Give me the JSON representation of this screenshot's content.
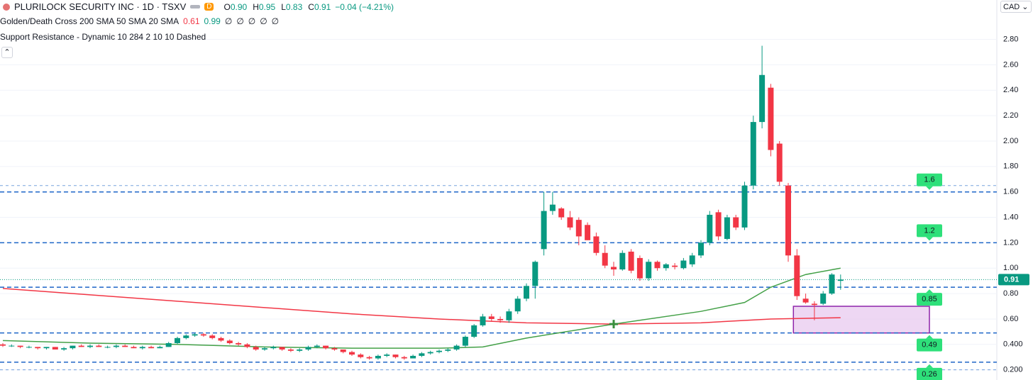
{
  "chart_data": {
    "type": "candlestick",
    "header": {
      "symbol": "PLURILOCK SECURITY INC · 1D · TSXV",
      "interval_badge": "D",
      "ohlc": [
        {
          "key": "O",
          "value": "0.90"
        },
        {
          "key": "H",
          "value": "0.95"
        },
        {
          "key": "L",
          "value": "0.83"
        },
        {
          "key": "C",
          "value": "0.91"
        }
      ],
      "change": "−0.04 (−4.21%)",
      "currency": "CAD"
    },
    "indicators": [
      {
        "name": "Golden/Death Cross 200 SMA 50 SMA 20 SMA",
        "values": [
          {
            "text": "0.61",
            "color": "#f23645"
          },
          {
            "text": "0.99",
            "color": "#089981"
          },
          {
            "text": "∅",
            "color": "#131722"
          },
          {
            "text": "∅",
            "color": "#131722"
          },
          {
            "text": "∅",
            "color": "#131722"
          },
          {
            "text": "∅",
            "color": "#131722"
          },
          {
            "text": "∅",
            "color": "#131722"
          }
        ]
      },
      {
        "name": "Support Resistance - Dynamic 10 284 2 10 10 Dashed"
      }
    ],
    "up_color": "#089981",
    "down_color": "#f23645",
    "open": [
      0.4,
      0.39,
      0.39,
      0.38,
      0.38,
      0.37,
      0.38,
      0.36,
      0.37,
      0.39,
      0.38,
      0.39,
      0.38,
      0.38,
      0.39,
      0.38,
      0.37,
      0.38,
      0.37,
      0.38,
      0.41,
      0.45,
      0.47,
      0.48,
      0.47,
      0.45,
      0.43,
      0.41,
      0.4,
      0.38,
      0.36,
      0.37,
      0.38,
      0.36,
      0.35,
      0.36,
      0.38,
      0.39,
      0.37,
      0.36,
      0.34,
      0.32,
      0.3,
      0.29,
      0.31,
      0.32,
      0.3,
      0.29,
      0.31,
      0.33,
      0.34,
      0.35,
      0.36,
      0.39,
      0.46,
      0.55,
      0.62,
      0.6,
      0.59,
      0.66,
      0.76,
      0.86,
      1.15,
      1.45,
      1.47,
      1.4,
      1.38,
      1.34,
      1.25,
      1.12,
      1.01,
      0.99,
      1.13,
      1.08,
      0.92,
      1.05,
      1.0,
      1.02,
      1.0,
      1.03,
      1.1,
      1.2,
      1.44,
      1.23,
      1.4,
      1.32,
      1.65,
      2.15,
      2.42,
      1.98,
      1.65,
      1.1,
      0.76,
      0.72,
      0.72,
      0.8,
      0.9
    ],
    "high": [
      0.41,
      0.4,
      0.39,
      0.39,
      0.38,
      0.38,
      0.38,
      0.38,
      0.39,
      0.4,
      0.4,
      0.4,
      0.39,
      0.4,
      0.4,
      0.39,
      0.39,
      0.39,
      0.39,
      0.42,
      0.46,
      0.48,
      0.49,
      0.49,
      0.48,
      0.46,
      0.44,
      0.42,
      0.41,
      0.39,
      0.38,
      0.39,
      0.38,
      0.37,
      0.37,
      0.39,
      0.4,
      0.39,
      0.38,
      0.36,
      0.35,
      0.33,
      0.31,
      0.32,
      0.33,
      0.32,
      0.31,
      0.32,
      0.34,
      0.35,
      0.36,
      0.37,
      0.4,
      0.47,
      0.56,
      0.64,
      0.64,
      0.62,
      0.68,
      0.78,
      0.88,
      1.06,
      1.6,
      1.6,
      1.48,
      1.45,
      1.4,
      1.36,
      1.28,
      1.18,
      1.05,
      1.14,
      1.15,
      1.1,
      1.07,
      1.06,
      1.04,
      1.04,
      1.08,
      1.12,
      1.22,
      1.45,
      1.46,
      1.42,
      1.42,
      1.68,
      2.2,
      2.75,
      2.45,
      2.0,
      1.67,
      1.15,
      0.8,
      0.74,
      0.82,
      0.96,
      0.95
    ],
    "low": [
      0.38,
      0.38,
      0.37,
      0.37,
      0.36,
      0.36,
      0.36,
      0.35,
      0.36,
      0.38,
      0.37,
      0.38,
      0.37,
      0.37,
      0.38,
      0.37,
      0.36,
      0.37,
      0.37,
      0.38,
      0.4,
      0.44,
      0.46,
      0.46,
      0.44,
      0.42,
      0.4,
      0.39,
      0.37,
      0.35,
      0.35,
      0.36,
      0.35,
      0.34,
      0.34,
      0.35,
      0.37,
      0.36,
      0.35,
      0.33,
      0.31,
      0.29,
      0.28,
      0.28,
      0.3,
      0.29,
      0.28,
      0.29,
      0.3,
      0.32,
      0.33,
      0.34,
      0.35,
      0.38,
      0.45,
      0.54,
      0.58,
      0.57,
      0.57,
      0.64,
      0.74,
      0.76,
      1.1,
      1.42,
      1.38,
      1.3,
      1.18,
      1.22,
      1.1,
      1.0,
      0.94,
      0.98,
      0.96,
      0.9,
      0.9,
      0.98,
      0.98,
      0.99,
      0.99,
      1.01,
      1.08,
      1.18,
      1.22,
      1.22,
      1.3,
      1.3,
      1.62,
      2.1,
      1.88,
      1.65,
      1.05,
      0.75,
      0.72,
      0.59,
      0.71,
      0.79,
      0.83
    ],
    "close": [
      0.39,
      0.39,
      0.38,
      0.38,
      0.37,
      0.38,
      0.36,
      0.37,
      0.39,
      0.38,
      0.39,
      0.38,
      0.38,
      0.39,
      0.38,
      0.37,
      0.38,
      0.37,
      0.38,
      0.41,
      0.45,
      0.47,
      0.48,
      0.47,
      0.45,
      0.43,
      0.41,
      0.4,
      0.38,
      0.36,
      0.37,
      0.38,
      0.36,
      0.35,
      0.36,
      0.38,
      0.39,
      0.37,
      0.36,
      0.34,
      0.32,
      0.3,
      0.29,
      0.31,
      0.32,
      0.3,
      0.29,
      0.31,
      0.33,
      0.34,
      0.35,
      0.36,
      0.39,
      0.46,
      0.55,
      0.62,
      0.6,
      0.59,
      0.66,
      0.76,
      0.86,
      1.05,
      1.45,
      1.5,
      1.4,
      1.32,
      1.25,
      1.22,
      1.12,
      1.02,
      0.99,
      1.12,
      0.98,
      0.92,
      1.05,
      1.0,
      1.03,
      1.01,
      1.06,
      1.1,
      1.2,
      1.42,
      1.25,
      1.4,
      1.32,
      1.65,
      2.15,
      2.52,
      1.93,
      1.68,
      1.1,
      0.78,
      0.73,
      0.71,
      0.8,
      0.95,
      0.91
    ],
    "series": [
      {
        "color": "#f23645",
        "x": [
          0,
          10,
          20,
          30,
          40,
          50,
          60,
          70,
          80,
          88,
          96
        ],
        "values": [
          0.84,
          0.79,
          0.74,
          0.69,
          0.64,
          0.6,
          0.57,
          0.56,
          0.57,
          0.6,
          0.61
        ]
      },
      {
        "color": "#43a047",
        "x": [
          0,
          10,
          20,
          30,
          40,
          50,
          55,
          60,
          70,
          80,
          85,
          88,
          92,
          96
        ],
        "values": [
          0.43,
          0.41,
          0.4,
          0.38,
          0.37,
          0.37,
          0.38,
          0.45,
          0.56,
          0.66,
          0.73,
          0.85,
          0.95,
          1.0
        ]
      }
    ],
    "cross_marker": {
      "x": 70,
      "value": 0.56,
      "color": "#388e3c"
    },
    "levels": [
      {
        "value": 1.6,
        "label": "1.6"
      },
      {
        "value": 1.2,
        "label": "1.2"
      },
      {
        "value": 0.85,
        "label": "0.85"
      },
      {
        "value": 0.49,
        "label": "0.49"
      },
      {
        "value": 0.26,
        "label": "0.26"
      }
    ],
    "extra_levels": [
      1.65,
      0.2
    ],
    "level_color": "#1e66c8",
    "tag_color": "#2ee07a",
    "zone": {
      "low": 0.49,
      "high": 0.7,
      "start": 91,
      "fill": "#e7c6ee",
      "stroke": "#8e24aa"
    },
    "last_price": {
      "value": 0.91,
      "label": "0.91"
    },
    "ylim": [
      0.12,
      3.11
    ],
    "yticks": [
      {
        "value": 0.2,
        "label": "0.200"
      },
      {
        "value": 0.4,
        "label": "0.400"
      },
      {
        "value": 0.6,
        "label": "0.60"
      },
      {
        "value": 0.8,
        "label": "0.80"
      },
      {
        "value": 1.0,
        "label": "1.00"
      },
      {
        "value": 1.2,
        "label": "1.20"
      },
      {
        "value": 1.4,
        "label": "1.40"
      },
      {
        "value": 1.6,
        "label": "1.60"
      },
      {
        "value": 1.8,
        "label": "1.80"
      },
      {
        "value": 2.0,
        "label": "2.00"
      },
      {
        "value": 2.2,
        "label": "2.20"
      },
      {
        "value": 2.4,
        "label": "2.40"
      },
      {
        "value": 2.6,
        "label": "2.60"
      },
      {
        "value": 2.8,
        "label": "2.80"
      }
    ],
    "grid": true
  }
}
